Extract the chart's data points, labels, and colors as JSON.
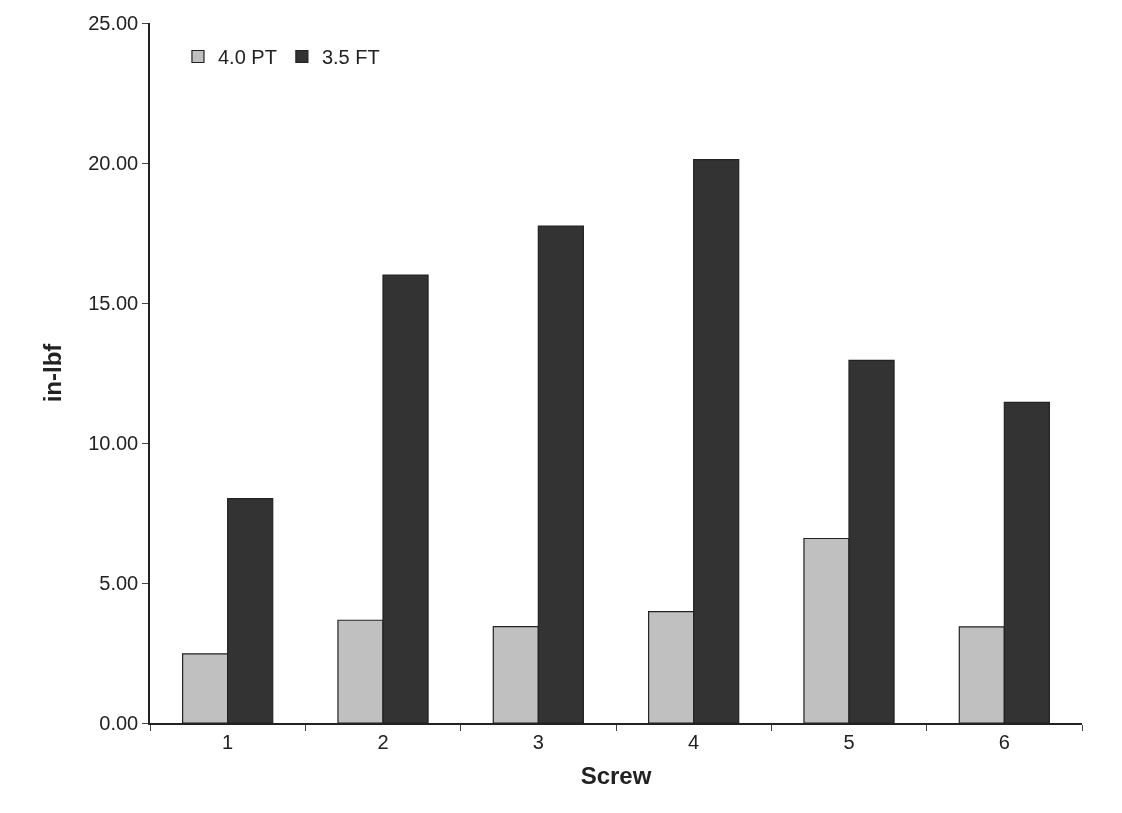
{
  "chart_data": {
    "type": "bar",
    "xlabel": "Screw",
    "ylabel": "in-lbf",
    "categories": [
      "1",
      "2",
      "3",
      "4",
      "5",
      "6"
    ],
    "series": [
      {
        "name": "4.0 PT",
        "color": "#c0c0c0",
        "values": [
          2.47,
          3.67,
          3.44,
          3.98,
          6.59,
          3.43
        ]
      },
      {
        "name": "3.5 FT",
        "color": "#333333",
        "values": [
          8.01,
          16.0,
          17.75,
          20.12,
          12.95,
          11.45
        ]
      }
    ],
    "ylim": [
      0,
      25
    ],
    "yticks": [
      {
        "value": 0,
        "label": "0.00"
      },
      {
        "value": 5,
        "label": "5.00"
      },
      {
        "value": 10,
        "label": "10.00"
      },
      {
        "value": 15,
        "label": "15.00"
      },
      {
        "value": 20,
        "label": "20.00"
      },
      {
        "value": 25,
        "label": "25.00"
      }
    ],
    "grid": false,
    "legend": "top left"
  }
}
